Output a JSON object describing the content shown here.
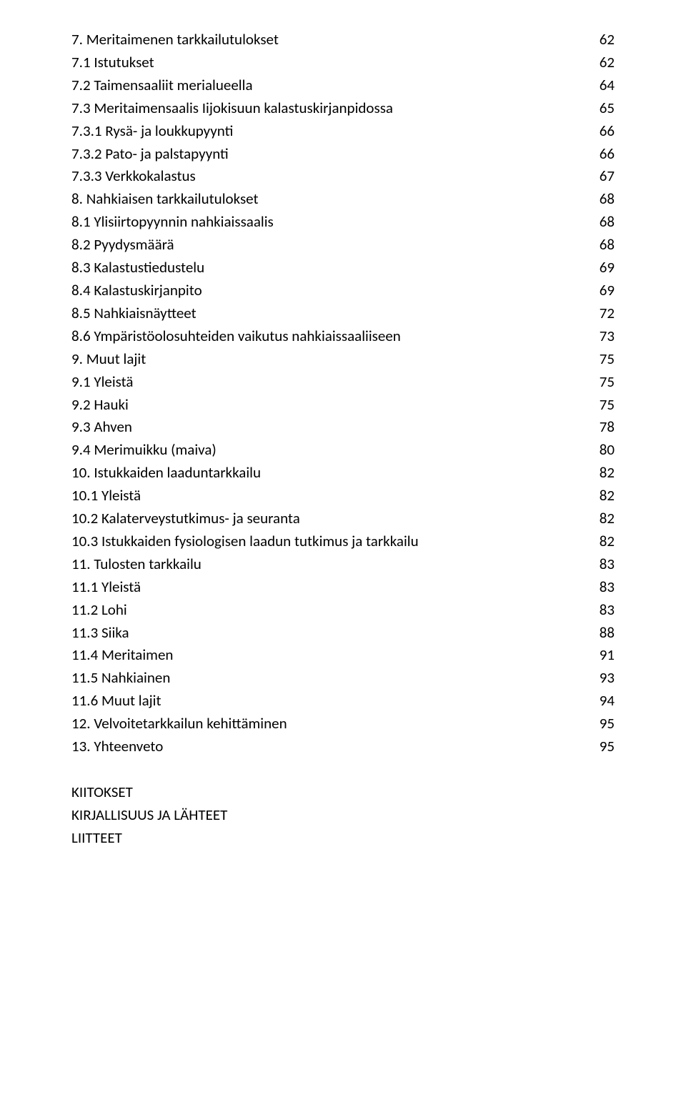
{
  "toc": [
    {
      "label": "7. Meritaimenen tarkkailutulokset",
      "page": "62"
    },
    {
      "label": "7.1 Istutukset",
      "page": "62"
    },
    {
      "label": "7.2 Taimensaaliit merialueella",
      "page": "64"
    },
    {
      "label": "7.3 Meritaimensaalis Iijokisuun kalastuskirjanpidossa",
      "page": "65"
    },
    {
      "label": "7.3.1 Rysä- ja loukkupyynti",
      "page": "66"
    },
    {
      "label": "7.3.2 Pato- ja palstapyynti",
      "page": "66"
    },
    {
      "label": "7.3.3 Verkkokalastus",
      "page": "67"
    },
    {
      "label": "8. Nahkiaisen tarkkailutulokset",
      "page": "68"
    },
    {
      "label": "8.1 Ylisiirtopyynnin nahkiaissaalis",
      "page": "68"
    },
    {
      "label": "8.2 Pyydysmäärä",
      "page": "68"
    },
    {
      "label": "8.3 Kalastustiedustelu",
      "page": "69"
    },
    {
      "label": "8.4 Kalastuskirjanpito",
      "page": "69"
    },
    {
      "label": "8.5 Nahkiaisnäytteet",
      "page": "72"
    },
    {
      "label": "8.6 Ympäristöolosuhteiden vaikutus nahkiaissaaliiseen",
      "page": "73"
    },
    {
      "label": "9. Muut lajit",
      "page": "75"
    },
    {
      "label": "9.1 Yleistä",
      "page": "75"
    },
    {
      "label": "9.2 Hauki",
      "page": "75"
    },
    {
      "label": "9.3 Ahven",
      "page": "78"
    },
    {
      "label": "9.4 Merimuikku (maiva)",
      "page": "80"
    },
    {
      "label": "10. Istukkaiden laaduntarkkailu",
      "page": "82"
    },
    {
      "label": "10.1 Yleistä",
      "page": "82"
    },
    {
      "label": "10.2 Kalaterveystutkimus- ja seuranta",
      "page": "82"
    },
    {
      "label": "10.3 Istukkaiden fysiologisen laadun tutkimus ja tarkkailu",
      "page": "82"
    },
    {
      "label": "11. Tulosten tarkkailu",
      "page": "83"
    },
    {
      "label": "11.1 Yleistä",
      "page": "83"
    },
    {
      "label": "11.2 Lohi",
      "page": "83"
    },
    {
      "label": "11.3 Siika",
      "page": "88"
    },
    {
      "label": "11.4 Meritaimen",
      "page": "91"
    },
    {
      "label": "11.5 Nahkiainen",
      "page": "93"
    },
    {
      "label": "11.6 Muut lajit",
      "page": "94"
    },
    {
      "label": "12. Velvoitetarkkailun kehittäminen",
      "page": "95"
    },
    {
      "label": "13. Yhteenveto",
      "page": "95"
    }
  ],
  "appendix": [
    "KIITOKSET",
    "KIRJALLISUUS JA LÄHTEET",
    "LIITTEET"
  ]
}
